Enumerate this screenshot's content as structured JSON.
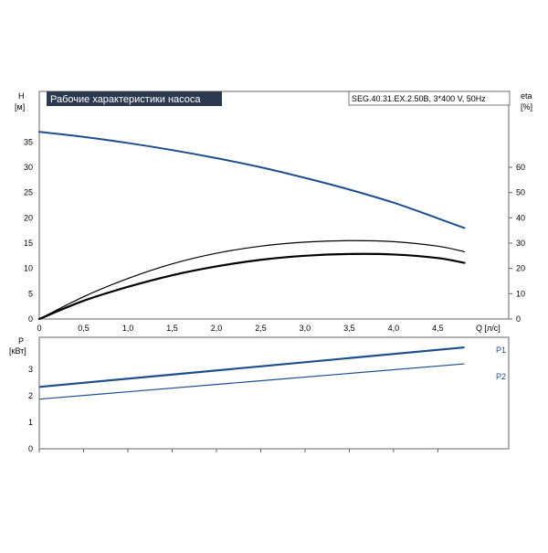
{
  "chart_data": [
    {
      "type": "line",
      "title": "Рабочие характеристики насоса",
      "model_label": "SEG.40.31.EX.2.50B, 3*400 V, 50Hz",
      "y_left_label": [
        "H",
        "[м]"
      ],
      "y_right_label": [
        "eta",
        "[%]"
      ],
      "x_label": "Q [л/с]",
      "x_ticks": [
        "0",
        "0,5",
        "1,0",
        "1,5",
        "2,0",
        "2,5",
        "3,0",
        "3,5",
        "4,0",
        "4,5"
      ],
      "x_tick_values": [
        0,
        0.5,
        1.0,
        1.5,
        2.0,
        2.5,
        3.0,
        3.5,
        4.0,
        4.5
      ],
      "xlim": [
        0,
        5.3
      ],
      "y_left_ticks": [
        0,
        5,
        10,
        15,
        20,
        25,
        30,
        35
      ],
      "y_left_lim": [
        0,
        45
      ],
      "y_right_ticks": [
        0,
        10,
        20,
        30,
        40,
        50,
        60
      ],
      "y_right_lim": [
        0,
        90
      ],
      "grid": true,
      "series": [
        {
          "name": "H",
          "axis": "left",
          "color": "#1f4e8c",
          "x": [
            0,
            0.5,
            1.0,
            1.5,
            2.0,
            2.5,
            3.0,
            3.5,
            4.0,
            4.5,
            4.8
          ],
          "y": [
            37.0,
            36.0,
            34.8,
            33.4,
            31.8,
            30.0,
            27.9,
            25.6,
            23.0,
            19.9,
            18.0
          ]
        },
        {
          "axis": "left",
          "color": "#000000",
          "width": 1.2,
          "x": [
            0,
            0.5,
            1.0,
            1.5,
            2.0,
            2.5,
            3.0,
            3.5,
            4.0,
            4.5,
            4.8
          ],
          "y": [
            0,
            4.4,
            8.0,
            10.9,
            13.0,
            14.4,
            15.2,
            15.5,
            15.3,
            14.4,
            13.3
          ]
        },
        {
          "name": "eta",
          "axis": "right",
          "color": "#000000",
          "width": 2.2,
          "x": [
            0,
            0.5,
            1.0,
            1.5,
            2.0,
            2.5,
            3.0,
            3.5,
            4.0,
            4.5,
            4.8
          ],
          "y": [
            0,
            7.2,
            12.7,
            17.3,
            20.8,
            23.4,
            25.0,
            25.7,
            25.5,
            24.1,
            22.2
          ]
        }
      ]
    },
    {
      "type": "line",
      "y_left_label": [
        "P",
        "[кВт]"
      ],
      "y_left_ticks": [
        0,
        1,
        2,
        3
      ],
      "y_left_lim": [
        0,
        4.2
      ],
      "x_ticks_visible": false,
      "grid": true,
      "series": [
        {
          "name": "P1",
          "color": "#1f4e8c",
          "width": 2.2,
          "x": [
            0,
            4.8
          ],
          "y": [
            2.33,
            3.82
          ]
        },
        {
          "name": "P2",
          "color": "#1f4e8c",
          "width": 1.2,
          "x": [
            0,
            4.8
          ],
          "y": [
            1.87,
            3.2
          ]
        }
      ]
    }
  ]
}
